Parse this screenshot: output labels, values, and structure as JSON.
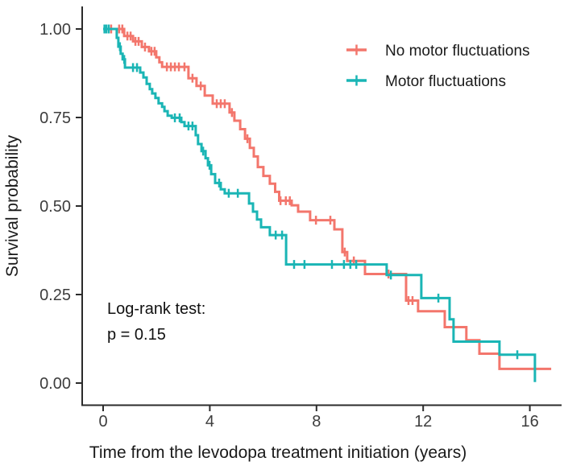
{
  "chart_data": {
    "type": "line",
    "subtype": "kaplan-meier-step",
    "title": "",
    "xlabel": "Time from the levodopa treatment initiation (years)",
    "ylabel": "Survival probability",
    "xlim": [
      0,
      16.8
    ],
    "ylim": [
      0.0,
      1.0
    ],
    "x_ticks": [
      0,
      4,
      8,
      12,
      16
    ],
    "y_ticks": [
      "0.00",
      "0.25",
      "0.50",
      "0.75",
      "1.00"
    ],
    "grid": false,
    "legend_position": "top-right",
    "annotation": [
      "Log-rank test:",
      "p = 0.15"
    ],
    "series": [
      {
        "name": "No motor fluctuations",
        "color": "#F3766C",
        "steps": [
          [
            0,
            1.0
          ],
          [
            0.79,
            0.98
          ],
          [
            1.12,
            0.965
          ],
          [
            1.45,
            0.949
          ],
          [
            1.72,
            0.937
          ],
          [
            1.99,
            0.92
          ],
          [
            2.11,
            0.906
          ],
          [
            2.21,
            0.893
          ],
          [
            3.2,
            0.861
          ],
          [
            3.5,
            0.839
          ],
          [
            3.81,
            0.812
          ],
          [
            4.11,
            0.789
          ],
          [
            4.74,
            0.764
          ],
          [
            4.92,
            0.741
          ],
          [
            5.14,
            0.717
          ],
          [
            5.32,
            0.69
          ],
          [
            5.5,
            0.664
          ],
          [
            5.65,
            0.64
          ],
          [
            5.8,
            0.61
          ],
          [
            6.01,
            0.585
          ],
          [
            6.25,
            0.563
          ],
          [
            6.45,
            0.54
          ],
          [
            6.6,
            0.515
          ],
          [
            7.07,
            0.502
          ],
          [
            7.31,
            0.484
          ],
          [
            7.76,
            0.46
          ],
          [
            8.67,
            0.434
          ],
          [
            8.97,
            0.37
          ],
          [
            9.15,
            0.345
          ],
          [
            9.82,
            0.308
          ],
          [
            11.36,
            0.233
          ],
          [
            11.81,
            0.203
          ],
          [
            12.81,
            0.158
          ],
          [
            13.62,
            0.121
          ],
          [
            14.11,
            0.083
          ],
          [
            14.86,
            0.04
          ],
          [
            16.8,
            0.04
          ]
        ],
        "censors": [
          [
            0.3,
            1.0
          ],
          [
            0.6,
            1.0
          ],
          [
            0.72,
            1.0
          ],
          [
            0.91,
            0.98
          ],
          [
            1.03,
            0.98
          ],
          [
            1.21,
            0.965
          ],
          [
            1.33,
            0.965
          ],
          [
            1.57,
            0.949
          ],
          [
            1.81,
            0.937
          ],
          [
            1.93,
            0.937
          ],
          [
            2.39,
            0.893
          ],
          [
            2.54,
            0.893
          ],
          [
            2.69,
            0.893
          ],
          [
            2.84,
            0.893
          ],
          [
            3.05,
            0.893
          ],
          [
            3.35,
            0.861
          ],
          [
            3.66,
            0.839
          ],
          [
            4.26,
            0.789
          ],
          [
            4.41,
            0.789
          ],
          [
            4.56,
            0.789
          ],
          [
            4.83,
            0.764
          ],
          [
            5.41,
            0.69
          ],
          [
            6.65,
            0.515
          ],
          [
            6.85,
            0.515
          ],
          [
            7.0,
            0.515
          ],
          [
            7.98,
            0.46
          ],
          [
            8.52,
            0.46
          ],
          [
            9.06,
            0.37
          ],
          [
            9.4,
            0.345
          ],
          [
            10.7,
            0.308
          ],
          [
            11.45,
            0.233
          ],
          [
            11.6,
            0.233
          ]
        ]
      },
      {
        "name": "Motor fluctuations",
        "color": "#1AB5B5",
        "steps": [
          [
            0,
            1.0
          ],
          [
            0.51,
            0.975
          ],
          [
            0.57,
            0.95
          ],
          [
            0.66,
            0.93
          ],
          [
            0.73,
            0.914
          ],
          [
            0.82,
            0.891
          ],
          [
            1.39,
            0.877
          ],
          [
            1.51,
            0.863
          ],
          [
            1.63,
            0.845
          ],
          [
            1.75,
            0.83
          ],
          [
            1.84,
            0.818
          ],
          [
            1.96,
            0.805
          ],
          [
            2.08,
            0.79
          ],
          [
            2.21,
            0.78
          ],
          [
            2.3,
            0.768
          ],
          [
            2.42,
            0.755
          ],
          [
            2.57,
            0.749
          ],
          [
            2.93,
            0.737
          ],
          [
            3.05,
            0.726
          ],
          [
            3.47,
            0.7
          ],
          [
            3.56,
            0.675
          ],
          [
            3.69,
            0.655
          ],
          [
            3.84,
            0.635
          ],
          [
            3.93,
            0.615
          ],
          [
            4.05,
            0.59
          ],
          [
            4.2,
            0.565
          ],
          [
            4.41,
            0.547
          ],
          [
            4.56,
            0.536
          ],
          [
            5.47,
            0.507
          ],
          [
            5.62,
            0.484
          ],
          [
            5.77,
            0.462
          ],
          [
            5.92,
            0.44
          ],
          [
            6.25,
            0.418
          ],
          [
            6.86,
            0.335
          ],
          [
            10.63,
            0.305
          ],
          [
            11.93,
            0.24
          ],
          [
            12.99,
            0.18
          ],
          [
            13.14,
            0.117
          ],
          [
            14.86,
            0.08
          ],
          [
            16.19,
            0.003
          ]
        ],
        "censors": [
          [
            0.05,
            1.0
          ],
          [
            0.12,
            1.0
          ],
          [
            0.21,
            1.0
          ],
          [
            0.63,
            0.95
          ],
          [
            0.79,
            0.914
          ],
          [
            1.12,
            0.891
          ],
          [
            1.27,
            0.891
          ],
          [
            2.69,
            0.749
          ],
          [
            2.87,
            0.749
          ],
          [
            3.2,
            0.726
          ],
          [
            3.35,
            0.726
          ],
          [
            3.75,
            0.655
          ],
          [
            3.99,
            0.615
          ],
          [
            4.35,
            0.565
          ],
          [
            4.71,
            0.536
          ],
          [
            5.05,
            0.536
          ],
          [
            6.47,
            0.418
          ],
          [
            6.71,
            0.418
          ],
          [
            7.16,
            0.335
          ],
          [
            7.55,
            0.335
          ],
          [
            8.58,
            0.335
          ],
          [
            9.03,
            0.335
          ],
          [
            9.27,
            0.335
          ],
          [
            9.49,
            0.335
          ],
          [
            10.79,
            0.305
          ],
          [
            12.57,
            0.24
          ],
          [
            15.53,
            0.08
          ]
        ]
      }
    ]
  }
}
